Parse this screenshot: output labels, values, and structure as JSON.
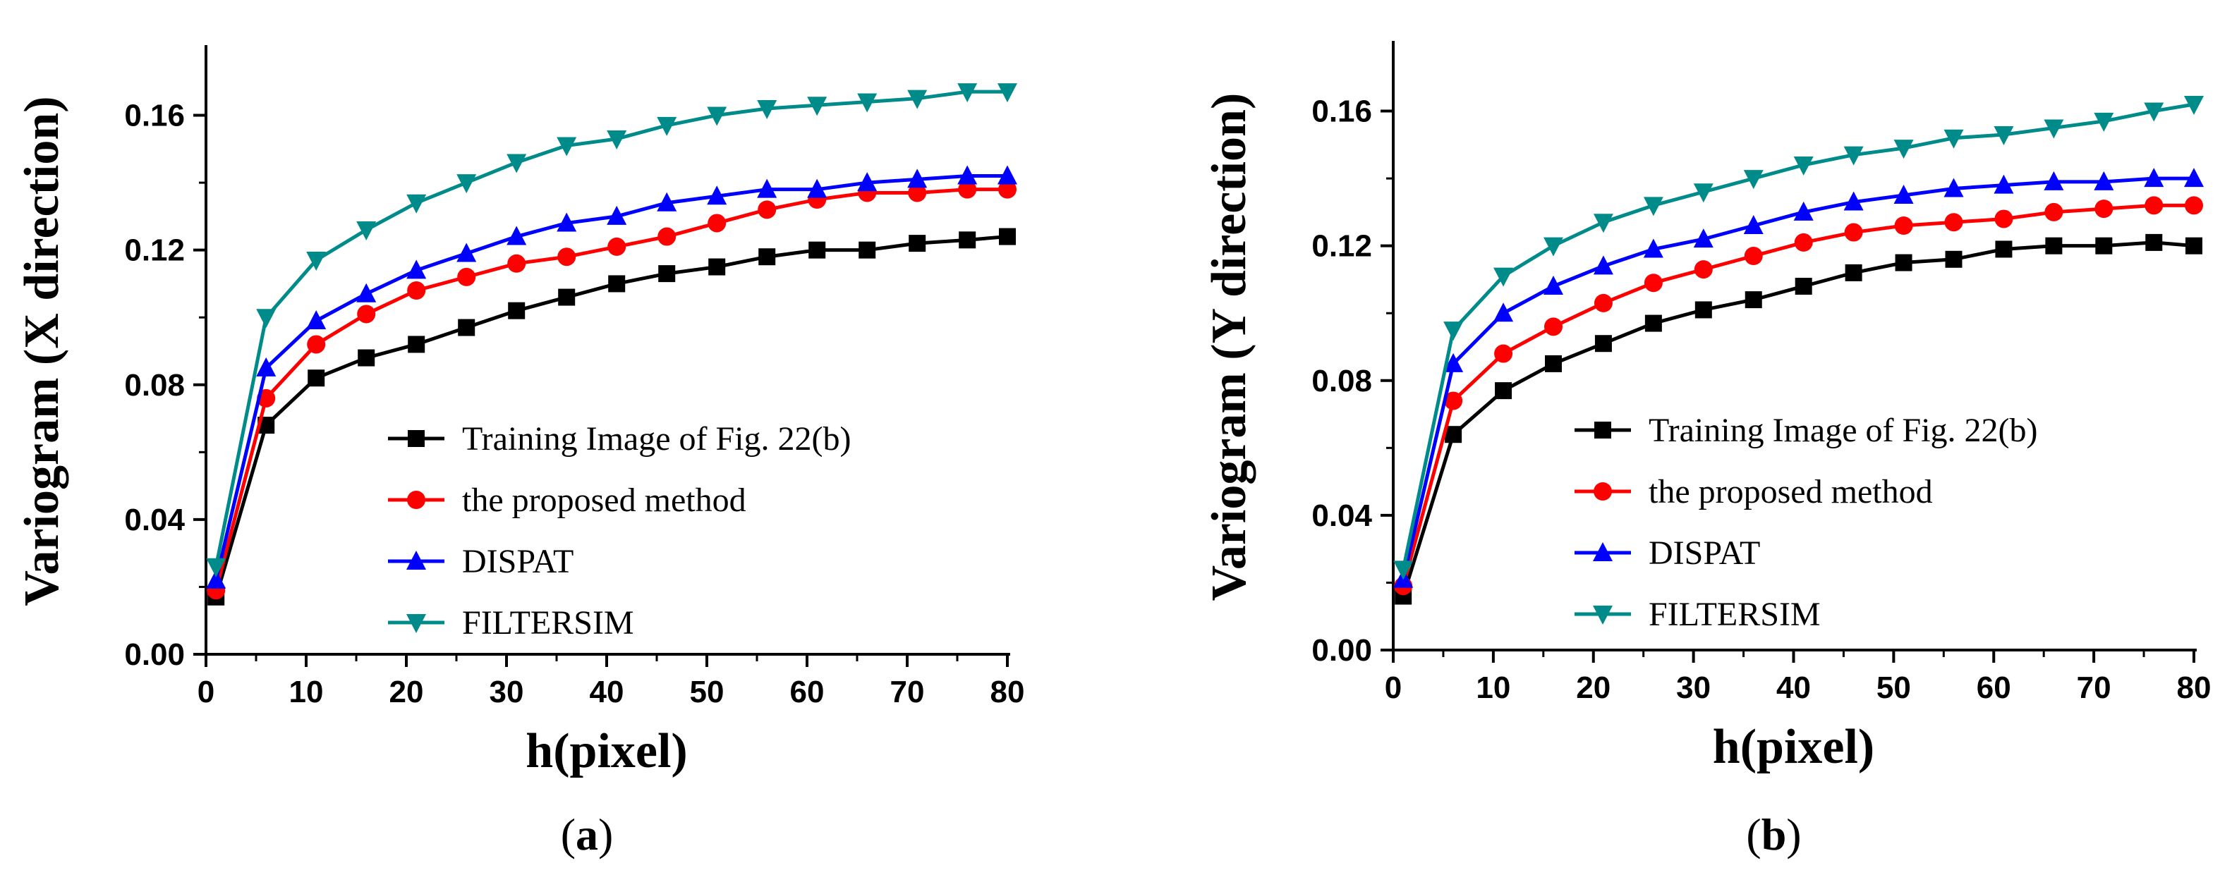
{
  "chart_data": [
    {
      "type": "line",
      "panel_label": "a",
      "xlabel": "h(pixel)",
      "ylabel": "Variogram (X direction)",
      "xlim": [
        0,
        80
      ],
      "ylim": [
        0,
        0.18
      ],
      "xticks": [
        0,
        10,
        20,
        30,
        40,
        50,
        60,
        70,
        80
      ],
      "yticks": [
        0.0,
        0.04,
        0.08,
        0.12,
        0.16
      ],
      "xtick_labels": [
        "0",
        "10",
        "20",
        "30",
        "40",
        "50",
        "60",
        "70",
        "80"
      ],
      "ytick_labels": [
        "0.00",
        "0.04",
        "0.08",
        "0.12",
        "0.16"
      ],
      "grid": false,
      "legend_position": "bottom-right",
      "x": [
        1,
        6,
        11,
        16,
        21,
        26,
        31,
        36,
        41,
        46,
        51,
        56,
        61,
        66,
        71,
        76,
        80
      ],
      "series": [
        {
          "name": "Training Image of Fig. 22(b)",
          "color": "#000000",
          "marker": "square",
          "values": [
            0.017,
            0.068,
            0.082,
            0.088,
            0.092,
            0.097,
            0.102,
            0.106,
            0.11,
            0.113,
            0.115,
            0.118,
            0.12,
            0.12,
            0.122,
            0.123,
            0.124
          ]
        },
        {
          "name": "the proposed method",
          "color": "#ff0000",
          "marker": "circle",
          "values": [
            0.019,
            0.076,
            0.092,
            0.101,
            0.108,
            0.112,
            0.116,
            0.118,
            0.121,
            0.124,
            0.128,
            0.132,
            0.135,
            0.137,
            0.137,
            0.138,
            0.138
          ]
        },
        {
          "name": "DISPAT",
          "color": "#0000ff",
          "marker": "triangle-up",
          "values": [
            0.022,
            0.085,
            0.099,
            0.107,
            0.114,
            0.119,
            0.124,
            0.128,
            0.13,
            0.134,
            0.136,
            0.138,
            0.138,
            0.14,
            0.141,
            0.142,
            0.142
          ]
        },
        {
          "name": "FILTERSIM",
          "color": "#008b8b",
          "marker": "triangle-down",
          "values": [
            0.026,
            0.1,
            0.117,
            0.126,
            0.134,
            0.14,
            0.146,
            0.151,
            0.153,
            0.157,
            0.16,
            0.162,
            0.163,
            0.164,
            0.165,
            0.167,
            0.167
          ]
        }
      ]
    },
    {
      "type": "line",
      "panel_label": "b",
      "xlabel": "h(pixel)",
      "ylabel": "Variogram (Y direction)",
      "xlim": [
        0,
        80
      ],
      "ylim": [
        0,
        0.18
      ],
      "xticks": [
        0,
        10,
        20,
        30,
        40,
        50,
        60,
        70,
        80
      ],
      "yticks": [
        0.0,
        0.04,
        0.08,
        0.12,
        0.16
      ],
      "xtick_labels": [
        "0",
        "10",
        "20",
        "30",
        "40",
        "50",
        "60",
        "70",
        "80"
      ],
      "ytick_labels": [
        "0.00",
        "0.04",
        "0.08",
        "0.12",
        "0.16"
      ],
      "grid": false,
      "legend_position": "bottom-right",
      "x": [
        1,
        6,
        11,
        16,
        21,
        26,
        31,
        36,
        41,
        46,
        51,
        56,
        61,
        66,
        71,
        76,
        80
      ],
      "series": [
        {
          "name": "Training Image of Fig. 22(b)",
          "color": "#000000",
          "marker": "square",
          "values": [
            0.016,
            0.064,
            0.077,
            0.085,
            0.091,
            0.097,
            0.101,
            0.104,
            0.108,
            0.112,
            0.115,
            0.116,
            0.119,
            0.12,
            0.12,
            0.121,
            0.12
          ]
        },
        {
          "name": "the proposed method",
          "color": "#ff0000",
          "marker": "circle",
          "values": [
            0.019,
            0.074,
            0.088,
            0.096,
            0.103,
            0.109,
            0.113,
            0.117,
            0.121,
            0.124,
            0.126,
            0.127,
            0.128,
            0.13,
            0.131,
            0.132,
            0.132
          ]
        },
        {
          "name": "DISPAT",
          "color": "#0000ff",
          "marker": "triangle-up",
          "values": [
            0.021,
            0.085,
            0.1,
            0.108,
            0.114,
            0.119,
            0.122,
            0.126,
            0.13,
            0.133,
            0.135,
            0.137,
            0.138,
            0.139,
            0.139,
            0.14,
            0.14
          ]
        },
        {
          "name": "FILTERSIM",
          "color": "#008b8b",
          "marker": "triangle-down",
          "values": [
            0.024,
            0.095,
            0.111,
            0.12,
            0.127,
            0.132,
            0.136,
            0.14,
            0.144,
            0.147,
            0.149,
            0.152,
            0.153,
            0.155,
            0.157,
            0.16,
            0.162
          ]
        }
      ]
    }
  ]
}
